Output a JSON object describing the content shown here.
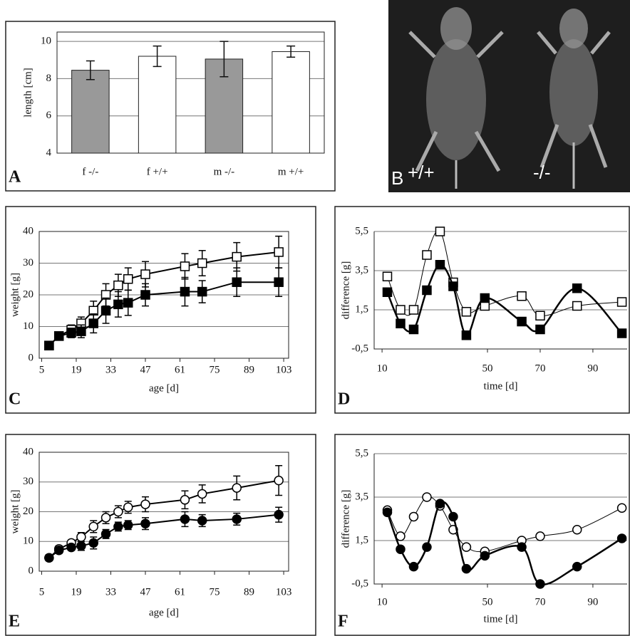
{
  "chart_data": [
    {
      "type": "bar",
      "panel_label": "A",
      "y_label": "length [cm]",
      "categories": [
        "f -/-",
        "f +/+",
        "m -/-",
        "m +/+"
      ],
      "values": [
        8.45,
        9.2,
        9.05,
        9.45
      ],
      "errors": [
        0.5,
        0.55,
        0.95,
        0.3
      ],
      "colors": [
        "#999999",
        "#ffffff",
        "#999999",
        "#ffffff"
      ],
      "ylim": [
        4,
        10.5
      ],
      "yticks": [
        4,
        6,
        8,
        10
      ],
      "grid": true
    },
    {
      "type": "line",
      "panel_label": "C",
      "x_label": "age [d]",
      "y_label": "weight [g]",
      "x": [
        8,
        12,
        17,
        21,
        26,
        31,
        36,
        40,
        47,
        63,
        70,
        84,
        101
      ],
      "series": [
        {
          "marker": "square",
          "filled": false,
          "color": "#000000",
          "values": [
            4,
            7,
            9,
            11,
            15,
            20,
            23,
            25,
            26.5,
            29,
            30,
            32,
            33.5
          ],
          "errors": [
            1,
            1,
            1.5,
            2,
            3,
            3.5,
            3.5,
            3.5,
            4,
            4,
            4,
            4.5,
            5
          ]
        },
        {
          "marker": "square",
          "filled": true,
          "color": "#000000",
          "values": [
            4,
            7,
            8,
            8.5,
            11,
            15,
            17,
            17.5,
            20,
            21,
            21,
            24,
            24
          ],
          "errors": [
            1,
            1,
            1.5,
            2,
            3,
            4,
            4,
            4,
            3.5,
            4.5,
            3.5,
            4.5,
            4.5
          ]
        }
      ],
      "xlim": [
        4,
        105
      ],
      "xticks": [
        5,
        19,
        33,
        47,
        61,
        75,
        89,
        103
      ],
      "ylim": [
        0,
        40
      ],
      "yticks": [
        0,
        10,
        20,
        30,
        40
      ],
      "grid": true,
      "smooth": false
    },
    {
      "type": "line",
      "panel_label": "D",
      "x_label": "time [d]",
      "y_label": "difference [g]",
      "x": [
        12,
        17,
        22,
        27,
        32,
        37,
        42,
        49,
        63,
        70,
        84,
        101
      ],
      "series": [
        {
          "marker": "square",
          "filled": false,
          "color": "#000000",
          "values": [
            3.2,
            1.5,
            1.5,
            4.3,
            5.5,
            2.9,
            1.4,
            1.7,
            2.2,
            1.2,
            1.7,
            1.9
          ]
        },
        {
          "marker": "square",
          "filled": true,
          "color": "#000000",
          "values": [
            2.4,
            0.8,
            0.5,
            2.5,
            3.8,
            2.7,
            0.2,
            2.1,
            0.9,
            0.5,
            2.6,
            0.3
          ]
        }
      ],
      "xlim": [
        7,
        103
      ],
      "xticks": [
        10,
        50,
        70,
        90
      ],
      "ylim": [
        -0.5,
        5.5
      ],
      "yticks": [
        {
          "value": -0.5,
          "label": "-0,5"
        },
        {
          "value": 1.5,
          "label": "1,5"
        },
        {
          "value": 3.5,
          "label": "3,5"
        },
        {
          "value": 5.5,
          "label": "5,5"
        }
      ],
      "grid": true,
      "smooth": true
    },
    {
      "type": "line",
      "panel_label": "E",
      "x_label": "age [d]",
      "y_label": "weight [g]",
      "x": [
        8,
        12,
        17,
        21,
        26,
        31,
        36,
        40,
        47,
        63,
        70,
        84,
        101
      ],
      "series": [
        {
          "marker": "circle",
          "filled": false,
          "color": "#000000",
          "values": [
            4.5,
            7.5,
            9.5,
            11.5,
            15,
            18,
            20,
            21.5,
            22.5,
            24,
            26,
            28,
            30.5
          ],
          "errors": [
            1,
            1,
            1,
            1.5,
            2,
            2,
            2,
            2,
            2.5,
            3,
            3,
            4,
            5
          ]
        },
        {
          "marker": "circle",
          "filled": true,
          "color": "#000000",
          "values": [
            4.5,
            7,
            8,
            8.5,
            9.5,
            12.5,
            15,
            15.5,
            16,
            17.5,
            17,
            17.5,
            19
          ],
          "errors": [
            1,
            1,
            1,
            1.5,
            2,
            1.5,
            1.5,
            1.5,
            2,
            2.5,
            2,
            2,
            2.5
          ]
        }
      ],
      "xlim": [
        4,
        105
      ],
      "xticks": [
        5,
        19,
        33,
        47,
        61,
        75,
        89,
        103
      ],
      "ylim": [
        0,
        40
      ],
      "yticks": [
        0,
        10,
        20,
        30,
        40
      ],
      "grid": true,
      "smooth": false
    },
    {
      "type": "line",
      "panel_label": "F",
      "x_label": "time [d]",
      "y_label": "difference [g]",
      "x": [
        12,
        17,
        22,
        27,
        32,
        37,
        42,
        49,
        63,
        70,
        84,
        101
      ],
      "series": [
        {
          "marker": "circle",
          "filled": false,
          "color": "#000000",
          "values": [
            2.9,
            1.7,
            2.6,
            3.5,
            3.1,
            2.0,
            1.2,
            1.0,
            1.5,
            1.7,
            2.0,
            3.0
          ]
        },
        {
          "marker": "circle",
          "filled": true,
          "color": "#000000",
          "values": [
            2.8,
            1.1,
            0.3,
            1.2,
            3.2,
            2.6,
            0.2,
            0.8,
            1.2,
            -0.5,
            0.3,
            1.6
          ]
        }
      ],
      "xlim": [
        7,
        103
      ],
      "xticks": [
        10,
        50,
        70,
        90
      ],
      "ylim": [
        -0.5,
        5.5
      ],
      "yticks": [
        {
          "value": -0.5,
          "label": "-0,5"
        },
        {
          "value": 1.5,
          "label": "1,5"
        },
        {
          "value": 3.5,
          "label": "3,5"
        },
        {
          "value": 5.5,
          "label": "5,5"
        }
      ],
      "grid": true,
      "smooth": true
    }
  ],
  "photo": {
    "panel_label": "B",
    "labels": [
      "+/+",
      "-/-"
    ]
  }
}
